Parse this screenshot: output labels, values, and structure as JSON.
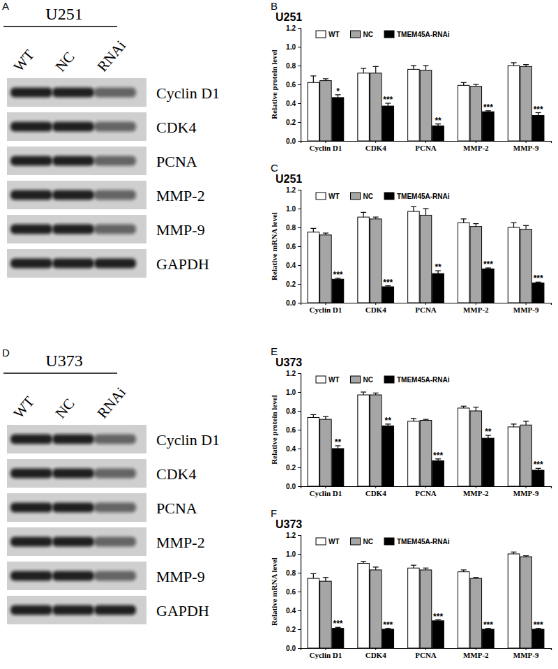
{
  "chart_data": [
    {
      "type": "bar",
      "title": "U251",
      "annotations": [
        "B"
      ],
      "y_label": "Relative protein level",
      "categories": [
        "Cyclin D1",
        "CDK4",
        "PCNA",
        "MMP-2",
        "MMP-9"
      ],
      "series": [
        {
          "name": "WT",
          "color": "#ffffff",
          "values": [
            0.62,
            0.72,
            0.76,
            0.59,
            0.8
          ],
          "errors": [
            0.07,
            0.05,
            0.04,
            0.03,
            0.03
          ]
        },
        {
          "name": "NC",
          "color": "#a6a6a6",
          "values": [
            0.64,
            0.72,
            0.75,
            0.58,
            0.79
          ],
          "errors": [
            0.02,
            0.07,
            0.05,
            0.02,
            0.02
          ]
        },
        {
          "name": "TMEM45A-RNAi",
          "color": "#000000",
          "values": [
            0.46,
            0.37,
            0.16,
            0.31,
            0.27
          ],
          "errors": [
            0.03,
            0.03,
            0.02,
            0.01,
            0.03
          ],
          "significance": [
            "*",
            "***",
            "**",
            "***",
            "***"
          ]
        }
      ],
      "ylim": [
        0,
        1.2
      ],
      "yticks": [
        {
          "value": 0,
          "label": "0.0"
        },
        {
          "value": 0.2,
          "label": "0.2"
        },
        {
          "value": 0.4,
          "label": "0.4"
        },
        {
          "value": 0.6,
          "label": "0.6"
        },
        {
          "value": 0.8,
          "label": "0.8"
        },
        {
          "value": 1,
          "label": "1.0"
        },
        {
          "value": 1.2,
          "label": "1.2"
        }
      ],
      "grid": false,
      "legend": "top"
    },
    {
      "type": "bar",
      "title": "U251",
      "annotations": [
        "C"
      ],
      "y_label": "Relative mRNA level",
      "categories": [
        "Cyclin D1",
        "CDK4",
        "PCNA",
        "MMP-2",
        "MMP-9"
      ],
      "series": [
        {
          "name": "WT",
          "color": "#ffffff",
          "values": [
            0.75,
            0.91,
            0.97,
            0.85,
            0.8
          ],
          "errors": [
            0.04,
            0.05,
            0.05,
            0.04,
            0.05
          ]
        },
        {
          "name": "NC",
          "color": "#a6a6a6",
          "values": [
            0.72,
            0.89,
            0.93,
            0.81,
            0.78
          ],
          "errors": [
            0.02,
            0.02,
            0.07,
            0.03,
            0.04
          ]
        },
        {
          "name": "TMEM45A-RNAi",
          "color": "#000000",
          "values": [
            0.25,
            0.17,
            0.31,
            0.36,
            0.21
          ],
          "errors": [
            0.01,
            0.01,
            0.03,
            0.01,
            0.01
          ],
          "significance": [
            "***",
            "***",
            "**",
            "***",
            "***"
          ]
        }
      ],
      "ylim": [
        0,
        1.2
      ],
      "yticks": [
        {
          "value": 0,
          "label": "0.0"
        },
        {
          "value": 0.2,
          "label": "0.2"
        },
        {
          "value": 0.4,
          "label": "0.4"
        },
        {
          "value": 0.6,
          "label": "0.6"
        },
        {
          "value": 0.8,
          "label": "0.8"
        },
        {
          "value": 1,
          "label": "1.0"
        },
        {
          "value": 1.2,
          "label": "1.2"
        }
      ],
      "grid": false,
      "legend": "top"
    },
    {
      "type": "bar",
      "title": "U373",
      "annotations": [
        "E"
      ],
      "y_label": "Relative protein level",
      "categories": [
        "Cyclin D1",
        "CDK4",
        "PCNA",
        "MMP-2",
        "MMP-9"
      ],
      "series": [
        {
          "name": "WT",
          "color": "#ffffff",
          "values": [
            0.73,
            0.97,
            0.69,
            0.83,
            0.63
          ],
          "errors": [
            0.03,
            0.03,
            0.03,
            0.02,
            0.03
          ]
        },
        {
          "name": "NC",
          "color": "#a6a6a6",
          "values": [
            0.71,
            0.97,
            0.7,
            0.8,
            0.65
          ],
          "errors": [
            0.03,
            0.02,
            0.01,
            0.04,
            0.04
          ]
        },
        {
          "name": "TMEM45A-RNAi",
          "color": "#000000",
          "values": [
            0.4,
            0.64,
            0.27,
            0.51,
            0.17
          ],
          "errors": [
            0.03,
            0.02,
            0.02,
            0.03,
            0.02
          ],
          "significance": [
            "**",
            "**",
            "***",
            "**",
            "***"
          ]
        }
      ],
      "ylim": [
        0,
        1.2
      ],
      "yticks": [
        {
          "value": 0,
          "label": "0.0"
        },
        {
          "value": 0.2,
          "label": "0.2"
        },
        {
          "value": 0.4,
          "label": "0.4"
        },
        {
          "value": 0.6,
          "label": "0.6"
        },
        {
          "value": 0.8,
          "label": "0.8"
        },
        {
          "value": 1,
          "label": "1.0"
        },
        {
          "value": 1.2,
          "label": "1.2"
        }
      ],
      "grid": false,
      "legend": "top"
    },
    {
      "type": "bar",
      "title": "U373",
      "annotations": [
        "F"
      ],
      "y_label": "Relative mRNA level",
      "categories": [
        "Cyclin D1",
        "CDK4",
        "PCNA",
        "MMP-2",
        "MMP-9"
      ],
      "series": [
        {
          "name": "WT",
          "color": "#ffffff",
          "values": [
            0.74,
            0.9,
            0.85,
            0.81,
            1.0
          ],
          "errors": [
            0.05,
            0.02,
            0.03,
            0.02,
            0.02
          ]
        },
        {
          "name": "NC",
          "color": "#a6a6a6",
          "values": [
            0.71,
            0.83,
            0.83,
            0.74,
            0.97
          ],
          "errors": [
            0.04,
            0.03,
            0.02,
            0.01,
            0.01
          ]
        },
        {
          "name": "TMEM45A-RNAi",
          "color": "#000000",
          "values": [
            0.21,
            0.2,
            0.29,
            0.2,
            0.2
          ],
          "errors": [
            0.01,
            0.01,
            0.01,
            0.01,
            0.01
          ],
          "significance": [
            "***",
            "***",
            "***",
            "***",
            "***"
          ]
        }
      ],
      "ylim": [
        0,
        1.2
      ],
      "yticks": [
        {
          "value": 0,
          "label": "0.0"
        },
        {
          "value": 0.2,
          "label": "0.2"
        },
        {
          "value": 0.4,
          "label": "0.4"
        },
        {
          "value": 0.6,
          "label": "0.6"
        },
        {
          "value": 0.8,
          "label": "0.8"
        },
        {
          "value": 1,
          "label": "1.0"
        },
        {
          "value": 1.2,
          "label": "1.2"
        }
      ],
      "grid": false,
      "legend": "top"
    }
  ],
  "blots": [
    {
      "panel": "A",
      "title": "U251",
      "lanes": [
        "WT",
        "NC",
        "RNAi"
      ],
      "proteins": [
        "Cyclin D1",
        "CDK4",
        "PCNA",
        "MMP-2",
        "MMP-9",
        "GAPDH"
      ]
    },
    {
      "panel": "D",
      "title": "U373",
      "lanes": [
        "WT",
        "NC",
        "RNAi"
      ],
      "proteins": [
        "Cyclin D1",
        "CDK4",
        "PCNA",
        "MMP-2",
        "MMP-9",
        "GAPDH"
      ]
    }
  ]
}
